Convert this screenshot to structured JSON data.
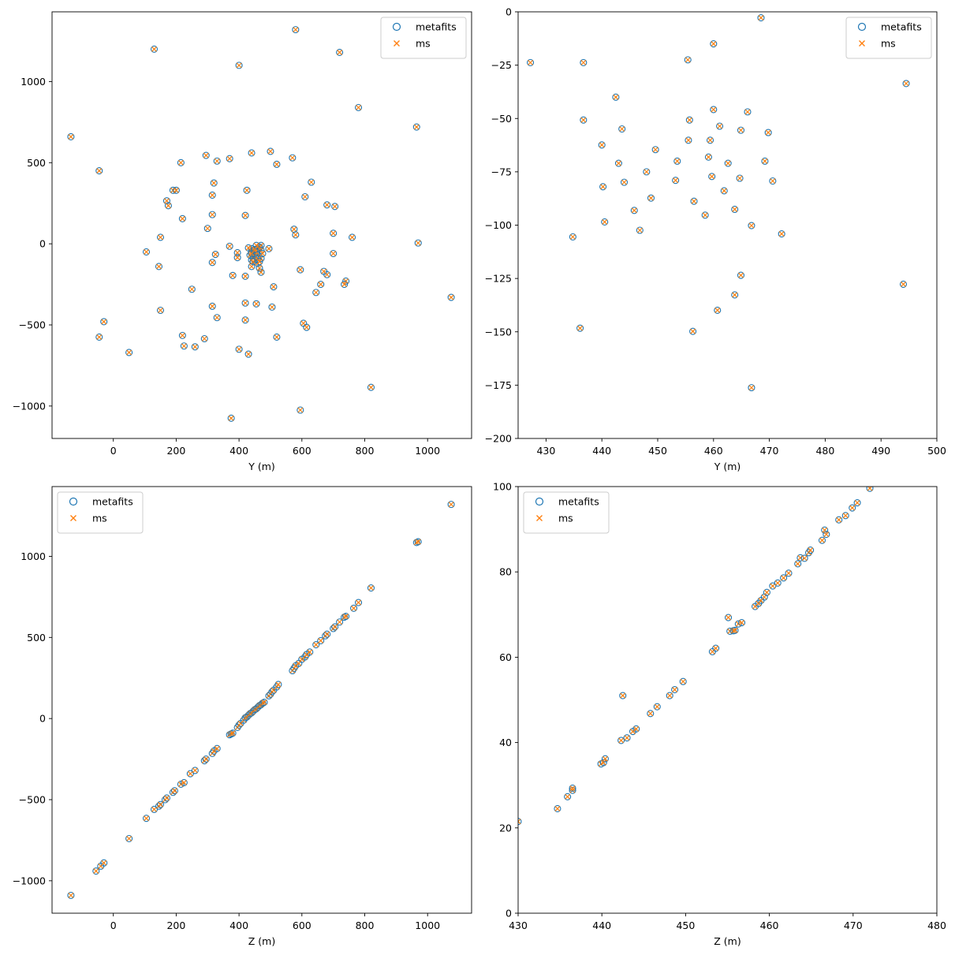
{
  "figure": {
    "background": "#ffffff"
  },
  "series_styles": {
    "metafits": {
      "marker": "circle-open",
      "color": "#1f77b4"
    },
    "ms": {
      "marker": "x",
      "color": "#ff7f0e"
    }
  },
  "chart_data": [
    {
      "type": "scatter",
      "panel": "top-left",
      "title": "",
      "xlabel": "Y (m)",
      "ylabel": "",
      "xlim": [
        -195,
        1140
      ],
      "ylim": [
        -1200,
        1430
      ],
      "xticks": [
        0,
        200,
        400,
        600,
        800,
        1000
      ],
      "yticks": [
        -1000,
        -500,
        0,
        500,
        1000
      ],
      "grid": false,
      "legend": {
        "position": "upper right",
        "entries": [
          "metafits",
          "ms"
        ]
      },
      "series": [
        {
          "name": "metafits",
          "marker": "circle-open",
          "color": "#1f77b4"
        },
        {
          "name": "ms",
          "marker": "x",
          "color": "#ff7f0e"
        }
      ],
      "points": [
        [
          -135,
          660
        ],
        [
          -45,
          -575
        ],
        [
          -30,
          -480
        ],
        [
          -45,
          450
        ],
        [
          130,
          1200
        ],
        [
          400,
          1100
        ],
        [
          580,
          1320
        ],
        [
          720,
          1180
        ],
        [
          780,
          840
        ],
        [
          965,
          720
        ],
        [
          970,
          5
        ],
        [
          1075,
          -330
        ],
        [
          820,
          -885
        ],
        [
          595,
          -1025
        ],
        [
          375,
          -1075
        ],
        [
          50,
          -670
        ],
        [
          105,
          -50
        ],
        [
          145,
          -140
        ],
        [
          150,
          40
        ],
        [
          150,
          -410
        ],
        [
          170,
          265
        ],
        [
          175,
          235
        ],
        [
          190,
          330
        ],
        [
          200,
          330
        ],
        [
          215,
          500
        ],
        [
          220,
          155
        ],
        [
          220,
          -565
        ],
        [
          225,
          -630
        ],
        [
          250,
          -280
        ],
        [
          260,
          -635
        ],
        [
          290,
          -585
        ],
        [
          295,
          545
        ],
        [
          300,
          95
        ],
        [
          315,
          180
        ],
        [
          315,
          300
        ],
        [
          320,
          375
        ],
        [
          330,
          510
        ],
        [
          370,
          525
        ],
        [
          440,
          560
        ],
        [
          500,
          570
        ],
        [
          520,
          490
        ],
        [
          570,
          530
        ],
        [
          610,
          290
        ],
        [
          630,
          380
        ],
        [
          680,
          240
        ],
        [
          705,
          230
        ],
        [
          700,
          65
        ],
        [
          760,
          40
        ],
        [
          700,
          -60
        ],
        [
          740,
          -230
        ],
        [
          735,
          -250
        ],
        [
          680,
          -190
        ],
        [
          670,
          -170
        ],
        [
          660,
          -250
        ],
        [
          645,
          -300
        ],
        [
          595,
          -160
        ],
        [
          605,
          -490
        ],
        [
          615,
          -515
        ],
        [
          520,
          -575
        ],
        [
          505,
          -390
        ],
        [
          510,
          -265
        ],
        [
          495,
          -30
        ],
        [
          470,
          -10
        ],
        [
          425,
          330
        ],
        [
          420,
          175
        ],
        [
          380,
          -195
        ],
        [
          370,
          -15
        ],
        [
          395,
          -55
        ],
        [
          395,
          -85
        ],
        [
          420,
          -200
        ],
        [
          420,
          -365
        ],
        [
          455,
          -370
        ],
        [
          420,
          -470
        ],
        [
          400,
          -650
        ],
        [
          430,
          -680
        ],
        [
          330,
          -455
        ],
        [
          315,
          -385
        ],
        [
          315,
          -115
        ],
        [
          325,
          -65
        ],
        [
          575,
          90
        ],
        [
          580,
          55
        ],
        [
          470,
          -175
        ],
        [
          465,
          -150
        ],
        [
          440,
          -140
        ],
        [
          460,
          -120
        ],
        [
          440,
          -100
        ],
        [
          445,
          -90
        ],
        [
          455,
          -80
        ],
        [
          460,
          -70
        ],
        [
          450,
          -60
        ],
        [
          440,
          -50
        ],
        [
          445,
          -40
        ],
        [
          460,
          -30
        ],
        [
          470,
          -40
        ],
        [
          465,
          -20
        ],
        [
          455,
          -10
        ],
        [
          440,
          -30
        ],
        [
          430,
          -25
        ],
        [
          450,
          -100
        ],
        [
          470,
          -90
        ],
        [
          445,
          -110
        ],
        [
          460,
          -95
        ],
        [
          455,
          -50
        ],
        [
          450,
          -35
        ],
        [
          475,
          -60
        ],
        [
          435,
          -70
        ],
        [
          465,
          -110
        ],
        [
          440,
          -60
        ]
      ]
    },
    {
      "type": "scatter",
      "panel": "top-right",
      "title": "",
      "xlabel": "Y (m)",
      "ylabel": "",
      "xlim": [
        425,
        500
      ],
      "ylim": [
        -200,
        0
      ],
      "xticks": [
        430,
        440,
        450,
        460,
        470,
        480,
        490,
        500
      ],
      "yticks": [
        -200,
        -175,
        -150,
        -125,
        -100,
        -75,
        -50,
        -25,
        0
      ],
      "grid": false,
      "legend": {
        "position": "upper right",
        "entries": [
          "metafits",
          "ms"
        ]
      },
      "series": [
        {
          "name": "metafits",
          "marker": "circle-open",
          "color": "#1f77b4"
        },
        {
          "name": "ms",
          "marker": "x",
          "color": "#ff7f0e"
        }
      ],
      "points": [
        [
          427.2,
          -23.8
        ],
        [
          436.7,
          -23.8
        ],
        [
          468.5,
          -2.8
        ],
        [
          460,
          -15
        ],
        [
          455.4,
          -22.5
        ],
        [
          494.5,
          -33.6
        ],
        [
          442.5,
          -40
        ],
        [
          436.7,
          -50.7
        ],
        [
          443.6,
          -54.9
        ],
        [
          455.7,
          -50.7
        ],
        [
          460,
          -45.8
        ],
        [
          466.1,
          -46.9
        ],
        [
          461.1,
          -53.6
        ],
        [
          464.9,
          -55.5
        ],
        [
          469.8,
          -56.6
        ],
        [
          455.5,
          -60.2
        ],
        [
          459.4,
          -60.2
        ],
        [
          440,
          -62.4
        ],
        [
          449.6,
          -64.6
        ],
        [
          443,
          -71
        ],
        [
          448,
          -75
        ],
        [
          453.5,
          -70
        ],
        [
          459.1,
          -68.1
        ],
        [
          462.6,
          -71
        ],
        [
          469.2,
          -70
        ],
        [
          459.7,
          -77.2
        ],
        [
          464.7,
          -78
        ],
        [
          470.6,
          -79.3
        ],
        [
          444,
          -79.9
        ],
        [
          440.2,
          -82
        ],
        [
          453.2,
          -79
        ],
        [
          461.9,
          -83.9
        ],
        [
          448.8,
          -87.3
        ],
        [
          456.5,
          -88.8
        ],
        [
          463.8,
          -92.6
        ],
        [
          445.8,
          -93.1
        ],
        [
          458.5,
          -95.3
        ],
        [
          440.5,
          -98.5
        ],
        [
          446.8,
          -102.4
        ],
        [
          466.8,
          -100.2
        ],
        [
          472.2,
          -104.1
        ],
        [
          434.8,
          -105.5
        ],
        [
          464.9,
          -123.5
        ],
        [
          494,
          -127.7
        ],
        [
          463.8,
          -132.7
        ],
        [
          460.7,
          -139.9
        ],
        [
          436.1,
          -148.3
        ],
        [
          456.3,
          -149.8
        ],
        [
          466.8,
          -176.2
        ]
      ]
    },
    {
      "type": "scatter",
      "panel": "bottom-left",
      "title": "",
      "xlabel": "Z (m)",
      "ylabel": "",
      "xlim": [
        -195,
        1140
      ],
      "ylim": [
        -1200,
        1430
      ],
      "xticks": [
        0,
        200,
        400,
        600,
        800,
        1000
      ],
      "yticks": [
        -1000,
        -500,
        0,
        500,
        1000
      ],
      "grid": false,
      "legend": {
        "position": "upper left",
        "entries": [
          "metafits",
          "ms"
        ]
      },
      "series": [
        {
          "name": "metafits",
          "marker": "circle-open",
          "color": "#1f77b4"
        },
        {
          "name": "ms",
          "marker": "x",
          "color": "#ff7f0e"
        }
      ],
      "points": [
        [
          -135,
          -1090
        ],
        [
          -55,
          -940
        ],
        [
          -40,
          -910
        ],
        [
          -30,
          -890
        ],
        [
          50,
          -740
        ],
        [
          105,
          -615
        ],
        [
          130,
          -560
        ],
        [
          145,
          -540
        ],
        [
          150,
          -530
        ],
        [
          165,
          -500
        ],
        [
          170,
          -490
        ],
        [
          190,
          -455
        ],
        [
          195,
          -445
        ],
        [
          215,
          -405
        ],
        [
          225,
          -395
        ],
        [
          245,
          -340
        ],
        [
          260,
          -320
        ],
        [
          290,
          -260
        ],
        [
          295,
          -250
        ],
        [
          315,
          -215
        ],
        [
          320,
          -200
        ],
        [
          330,
          -185
        ],
        [
          370,
          -100
        ],
        [
          375,
          -95
        ],
        [
          380,
          -90
        ],
        [
          395,
          -55
        ],
        [
          400,
          -40
        ],
        [
          405,
          -30
        ],
        [
          415,
          -10
        ],
        [
          420,
          5
        ],
        [
          425,
          10
        ],
        [
          430,
          20
        ],
        [
          435,
          30
        ],
        [
          440,
          35
        ],
        [
          445,
          45
        ],
        [
          450,
          55
        ],
        [
          455,
          60
        ],
        [
          460,
          70
        ],
        [
          465,
          80
        ],
        [
          470,
          85
        ],
        [
          475,
          95
        ],
        [
          480,
          100
        ],
        [
          495,
          140
        ],
        [
          500,
          150
        ],
        [
          505,
          165
        ],
        [
          510,
          175
        ],
        [
          520,
          195
        ],
        [
          525,
          210
        ],
        [
          570,
          295
        ],
        [
          575,
          310
        ],
        [
          580,
          325
        ],
        [
          590,
          340
        ],
        [
          600,
          365
        ],
        [
          610,
          380
        ],
        [
          615,
          395
        ],
        [
          625,
          410
        ],
        [
          645,
          455
        ],
        [
          660,
          480
        ],
        [
          675,
          510
        ],
        [
          680,
          520
        ],
        [
          700,
          555
        ],
        [
          705,
          565
        ],
        [
          720,
          595
        ],
        [
          735,
          625
        ],
        [
          740,
          630
        ],
        [
          765,
          680
        ],
        [
          780,
          715
        ],
        [
          820,
          805
        ],
        [
          965,
          1085
        ],
        [
          970,
          1090
        ],
        [
          1075,
          1320
        ]
      ]
    },
    {
      "type": "scatter",
      "panel": "bottom-right",
      "title": "",
      "xlabel": "Z (m)",
      "ylabel": "",
      "xlim": [
        430,
        480
      ],
      "ylim": [
        0,
        100
      ],
      "xticks": [
        430,
        440,
        450,
        460,
        470,
        480
      ],
      "yticks": [
        0,
        20,
        40,
        60,
        80,
        100
      ],
      "grid": false,
      "legend": {
        "position": "upper left",
        "entries": [
          "metafits",
          "ms"
        ]
      },
      "series": [
        {
          "name": "metafits",
          "marker": "circle-open",
          "color": "#1f77b4"
        },
        {
          "name": "ms",
          "marker": "x",
          "color": "#ff7f0e"
        }
      ],
      "points": [
        [
          430,
          21.5
        ],
        [
          434.7,
          24.5
        ],
        [
          435.9,
          27.3
        ],
        [
          436.5,
          28.8
        ],
        [
          436.5,
          29.3
        ],
        [
          439.9,
          35
        ],
        [
          440.2,
          35.3
        ],
        [
          440.4,
          36.2
        ],
        [
          442.3,
          40.5
        ],
        [
          442.5,
          51
        ],
        [
          443,
          41.1
        ],
        [
          443.7,
          42.6
        ],
        [
          444.1,
          43.2
        ],
        [
          445.8,
          46.8
        ],
        [
          446.6,
          48.4
        ],
        [
          448.1,
          51
        ],
        [
          448.7,
          52.4
        ],
        [
          449.7,
          54.3
        ],
        [
          453.2,
          61.3
        ],
        [
          453.6,
          62.1
        ],
        [
          455.1,
          69.3
        ],
        [
          455.3,
          66.1
        ],
        [
          455.7,
          66.2
        ],
        [
          455.9,
          66.3
        ],
        [
          456.3,
          67.8
        ],
        [
          456.7,
          68.1
        ],
        [
          458.3,
          71.9
        ],
        [
          458.7,
          72.6
        ],
        [
          459,
          73.3
        ],
        [
          459.4,
          74.1
        ],
        [
          459.7,
          75.2
        ],
        [
          460.4,
          76.7
        ],
        [
          461,
          77.4
        ],
        [
          461.7,
          78.6
        ],
        [
          462.3,
          79.7
        ],
        [
          463.4,
          81.9
        ],
        [
          463.7,
          83.3
        ],
        [
          464.2,
          83.2
        ],
        [
          464.7,
          84.5
        ],
        [
          464.9,
          85.1
        ],
        [
          466.3,
          87.4
        ],
        [
          466.6,
          89.8
        ],
        [
          466.8,
          88.8
        ],
        [
          468.3,
          92.2
        ],
        [
          469.1,
          93.2
        ],
        [
          469.9,
          95
        ],
        [
          470.5,
          96.2
        ],
        [
          472,
          99.6
        ]
      ]
    }
  ]
}
